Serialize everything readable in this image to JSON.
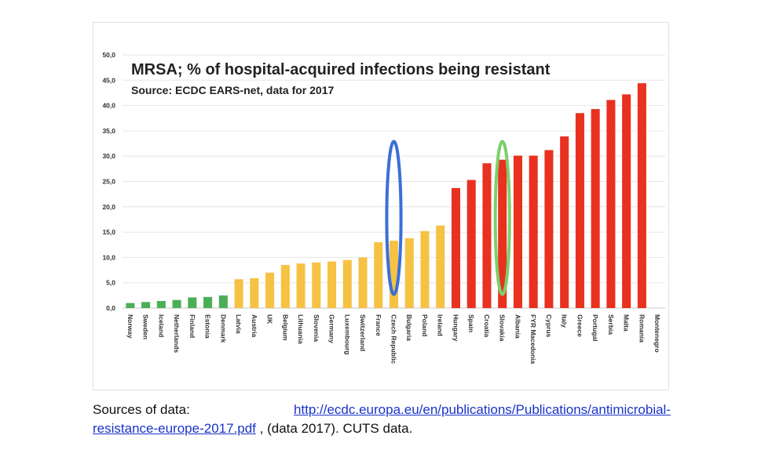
{
  "chart_data": {
    "type": "bar",
    "title": "MRSA; % of hospital-acquired infections being resistant",
    "subtitle": "Source: ECDC EARS-net, data for 2017",
    "xlabel": "",
    "ylabel": "",
    "ylim": [
      0,
      50
    ],
    "yticks": [
      "0,0",
      "5,0",
      "10,0",
      "15,0",
      "20,0",
      "25,0",
      "30,0",
      "35,0",
      "40,0",
      "45,0",
      "50,0"
    ],
    "grid": true,
    "categories": [
      "Norway",
      "Sweden",
      "Iceland",
      "Netherlands",
      "Finland",
      "Estonia",
      "Denmark",
      "Latvia",
      "Austria",
      "UK",
      "Belgium",
      "Lithuania",
      "Slovenia",
      "Germany",
      "Luxembourg",
      "Switzerland",
      "France",
      "Czech Republic",
      "Bulgaria",
      "Poland",
      "Ireland",
      "Hungary",
      "Spain",
      "Croatia",
      "Slovakia",
      "Albania",
      "FYR Macedonia",
      "Cyprus",
      "Italy",
      "Greece",
      "Portugal",
      "Serbia",
      "Malta",
      "Romania",
      "Montenegro"
    ],
    "values": [
      1.0,
      1.2,
      1.4,
      1.6,
      2.1,
      2.2,
      2.5,
      5.7,
      5.9,
      7.0,
      8.5,
      8.8,
      9.0,
      9.2,
      9.5,
      10.0,
      13.0,
      13.3,
      13.8,
      15.2,
      16.3,
      23.7,
      25.3,
      28.6,
      29.3,
      30.1,
      30.1,
      31.2,
      33.9,
      38.5,
      39.3,
      41.1,
      42.2,
      44.4,
      null
    ],
    "colors": [
      "#4cae57",
      "#4cae57",
      "#4cae57",
      "#4cae57",
      "#4cae57",
      "#4cae57",
      "#4cae57",
      "#f5c243",
      "#f5c243",
      "#f5c243",
      "#f5c243",
      "#f5c243",
      "#f5c243",
      "#f5c243",
      "#f5c243",
      "#f5c243",
      "#f5c243",
      "#f5c243",
      "#f5c243",
      "#f5c243",
      "#f5c243",
      "#e8311f",
      "#e8311f",
      "#e8311f",
      "#e8311f",
      "#e8311f",
      "#e8311f",
      "#e8311f",
      "#e8311f",
      "#e8311f",
      "#e8311f",
      "#e8311f",
      "#e8311f",
      "#e8311f",
      "#e8311f"
    ],
    "highlights": [
      {
        "category": "Czech Republic",
        "color": "#3b6fd8"
      },
      {
        "category": "Slovakia",
        "color": "#7dcf6b"
      }
    ]
  },
  "sources": {
    "label": "Sources of data:",
    "link_part1": "http://ecdc.europa.eu/en/publications/Publications/antimicrobial-",
    "link_part2": "resistance-europe-2017.pdf",
    "suffix": " , (data 2017). CUTS data."
  }
}
